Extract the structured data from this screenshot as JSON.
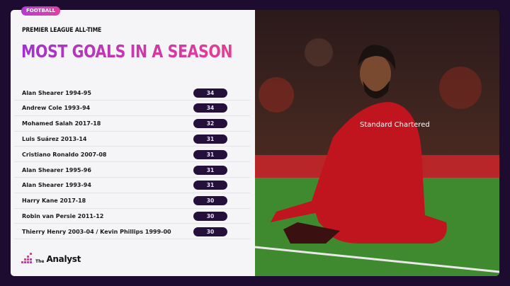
{
  "tag": "FOOTBALL",
  "subtitle": "PREMIER LEAGUE ALL-TIME",
  "title": "MOST GOALS IN A SEASON",
  "rows": [
    {
      "name": "Alan Shearer 1994-95",
      "goals": "34"
    },
    {
      "name": "Andrew Cole 1993-94",
      "goals": "34"
    },
    {
      "name": "Mohamed Salah 2017-18",
      "goals": "32"
    },
    {
      "name": "Luis Suárez 2013-14",
      "goals": "31"
    },
    {
      "name": "Cristiano Ronaldo 2007-08",
      "goals": "31"
    },
    {
      "name": "Alan Shearer 1995-96",
      "goals": "31"
    },
    {
      "name": "Alan Shearer 1993-94",
      "goals": "31"
    },
    {
      "name": "Harry Kane 2017-18",
      "goals": "30"
    },
    {
      "name": "Robin van Persie 2011-12",
      "goals": "30"
    },
    {
      "name": "Thierry Henry 2003-04 / Kevin Phillips 1999-00",
      "goals": "30"
    }
  ],
  "logo": {
    "the": "The",
    "name": "Analyst"
  },
  "photo": {
    "shirt_text": "Standard Chartered"
  },
  "colors": {
    "background": "#1d0c30",
    "accent_start": "#a231cf",
    "accent_end": "#e83d8f",
    "pill": "#24103b"
  }
}
